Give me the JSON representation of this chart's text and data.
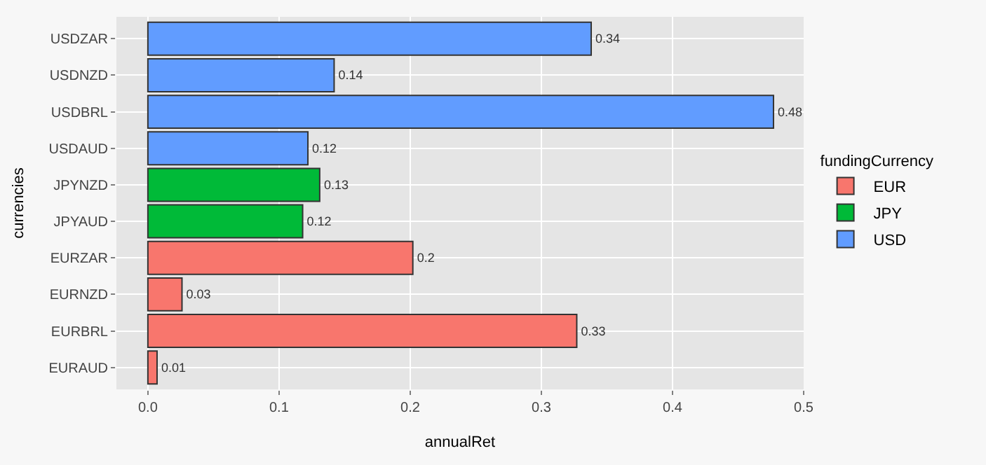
{
  "chart_data": {
    "type": "bar",
    "orientation": "horizontal",
    "xlabel": "annualRet",
    "ylabel": "currencies",
    "legend_title": "fundingCurrency",
    "categories": [
      "USDZAR",
      "USDNZD",
      "USDBRL",
      "USDAUD",
      "JPYNZD",
      "JPYAUD",
      "EURZAR",
      "EURNZD",
      "EURBRL",
      "EURAUD"
    ],
    "series": [
      {
        "name": "EUR",
        "color": "#f8766d",
        "values": [
          null,
          null,
          null,
          null,
          null,
          null,
          0.202,
          0.026,
          0.327,
          0.007
        ],
        "value_labels": [
          null,
          null,
          null,
          null,
          null,
          null,
          "0.2",
          "0.03",
          "0.33",
          "0.01"
        ]
      },
      {
        "name": "JPY",
        "color": "#00ba38",
        "values": [
          null,
          null,
          null,
          null,
          0.131,
          0.118,
          null,
          null,
          null,
          null
        ],
        "value_labels": [
          null,
          null,
          null,
          null,
          "0.13",
          "0.12",
          null,
          null,
          null,
          null
        ]
      },
      {
        "name": "USD",
        "color": "#619cff",
        "values": [
          0.338,
          0.142,
          0.477,
          0.122,
          null,
          null,
          null,
          null,
          null,
          null
        ],
        "value_labels": [
          "0.34",
          "0.14",
          "0.48",
          "0.12",
          null,
          null,
          null,
          null,
          null,
          null
        ]
      }
    ],
    "xlim": [
      -0.024,
      0.5
    ],
    "xticks": [
      {
        "value": 0,
        "label": "0.0"
      },
      0.1,
      0.2,
      0.3,
      0.4,
      0.5
    ],
    "grid": true,
    "legend": "right"
  }
}
